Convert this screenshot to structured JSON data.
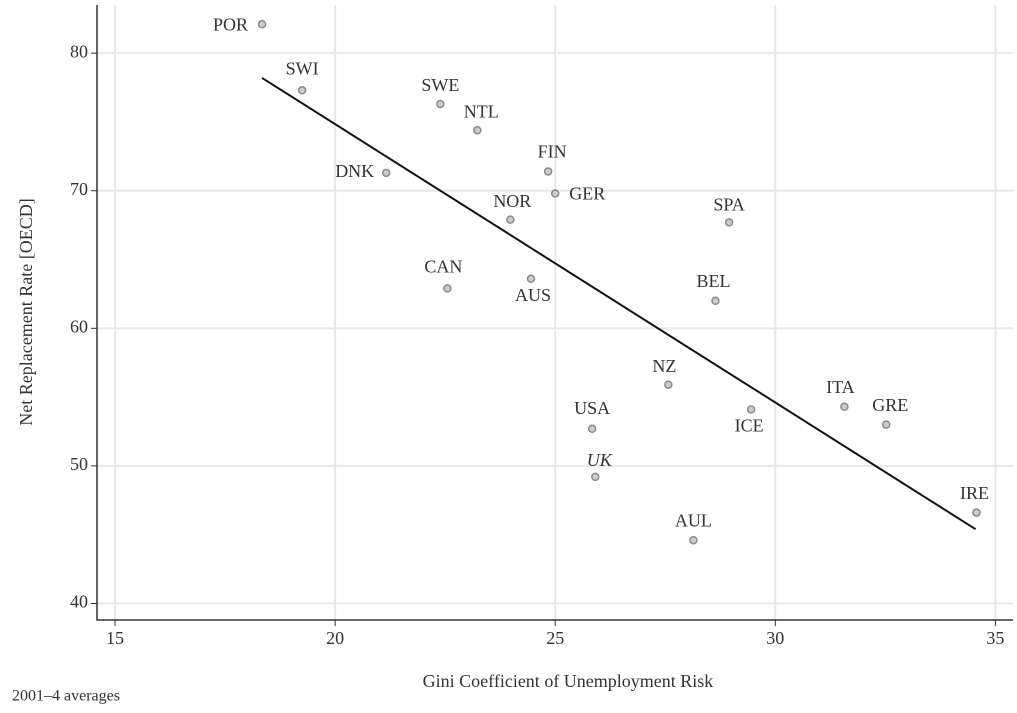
{
  "chart_data": {
    "type": "scatter",
    "x_label": "Gini Coefficient of Unemployment Risk",
    "y_label": "Net Replacement Rate [OECD]",
    "note": "2001–4 averages",
    "points": [
      "POR",
      "SWI",
      "SWE",
      "NTL",
      "DNK",
      "FIN",
      "GER",
      "NOR",
      "SPA",
      "CAN",
      "AUS",
      "BEL",
      "NZ",
      "ITA",
      "GRE",
      "ICE",
      "USA",
      "UK",
      "AUL",
      "IRE"
    ],
    "x": [
      18.34,
      19.25,
      22.39,
      23.23,
      21.16,
      24.84,
      25.0,
      23.98,
      28.95,
      22.55,
      24.45,
      28.64,
      27.57,
      31.57,
      32.52,
      29.45,
      25.84,
      25.91,
      28.14,
      34.57
    ],
    "y": [
      82.1,
      77.3,
      76.3,
      74.4,
      71.3,
      71.4,
      69.8,
      67.9,
      67.7,
      62.9,
      63.6,
      62.0,
      55.9,
      54.3,
      53.0,
      54.1,
      52.7,
      49.2,
      44.6,
      46.6
    ],
    "fit_line": {
      "x": [
        18.34,
        34.55
      ],
      "y": [
        78.2,
        45.4
      ]
    },
    "xlim": [
      14.59,
      35.4
    ],
    "ylim": [
      38.8,
      83.5
    ],
    "xticks": [
      15,
      20,
      25,
      30,
      35
    ],
    "yticks": [
      40,
      50,
      60,
      70,
      80
    ],
    "grid": true,
    "color": "#8a8a8a"
  }
}
